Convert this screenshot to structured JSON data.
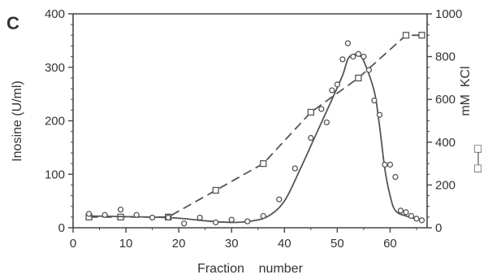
{
  "chart_data": {
    "type": "line",
    "panel_label": "C",
    "xlabel": "Fraction    number",
    "ylabel_left": "Inosine (U/ml)",
    "ylabel_right": "mM  KCl",
    "xlim": [
      0,
      67
    ],
    "ylim_left": [
      0,
      400
    ],
    "ylim_right": [
      0,
      1000
    ],
    "x_ticks": [
      0,
      10,
      20,
      30,
      40,
      50,
      60
    ],
    "y_left_ticks": [
      0,
      100,
      200,
      300,
      400
    ],
    "y_right_ticks": [
      0,
      200,
      400,
      600,
      800,
      1000
    ],
    "legend_right": "□—□",
    "series": [
      {
        "axis": "left",
        "marker": "circle",
        "points": [
          [
            3,
            26
          ],
          [
            6,
            24
          ],
          [
            9,
            34
          ],
          [
            12,
            24
          ],
          [
            15,
            19
          ],
          [
            18,
            19
          ],
          [
            21,
            8
          ],
          [
            24,
            19
          ],
          [
            27,
            10
          ],
          [
            30,
            15
          ],
          [
            33,
            12
          ],
          [
            36,
            22
          ],
          [
            39,
            53
          ],
          [
            42,
            111
          ],
          [
            45,
            168
          ],
          [
            47,
            222
          ],
          [
            48,
            197
          ],
          [
            49,
            257
          ],
          [
            50,
            268
          ],
          [
            51,
            315
          ],
          [
            52,
            345
          ],
          [
            53,
            320
          ],
          [
            54,
            325
          ],
          [
            55,
            320
          ],
          [
            56,
            295
          ],
          [
            57,
            238
          ],
          [
            58,
            211
          ],
          [
            59,
            118
          ],
          [
            60,
            118
          ],
          [
            61,
            95
          ],
          [
            62,
            32
          ],
          [
            63,
            29
          ],
          [
            64,
            22
          ],
          [
            65,
            17
          ],
          [
            66,
            14
          ]
        ],
        "curve": [
          [
            3,
            22
          ],
          [
            18,
            19
          ],
          [
            25,
            13
          ],
          [
            30,
            10
          ],
          [
            34,
            13
          ],
          [
            37,
            22
          ],
          [
            40,
            50
          ],
          [
            43,
            110
          ],
          [
            46,
            175
          ],
          [
            49,
            240
          ],
          [
            51,
            285
          ],
          [
            52,
            315
          ],
          [
            53,
            324
          ],
          [
            54,
            322
          ],
          [
            55,
            312
          ],
          [
            57,
            255
          ],
          [
            58,
            190
          ],
          [
            59,
            110
          ],
          [
            60,
            60
          ],
          [
            61,
            32
          ],
          [
            63,
            22
          ],
          [
            66,
            14
          ]
        ]
      },
      {
        "axis": "right",
        "marker": "square",
        "points": [
          [
            3,
            50
          ],
          [
            9,
            50
          ],
          [
            18,
            50
          ],
          [
            27,
            175
          ],
          [
            36,
            300
          ],
          [
            45,
            540
          ],
          [
            54,
            700
          ],
          [
            63,
            900
          ],
          [
            66,
            900
          ]
        ]
      }
    ]
  }
}
